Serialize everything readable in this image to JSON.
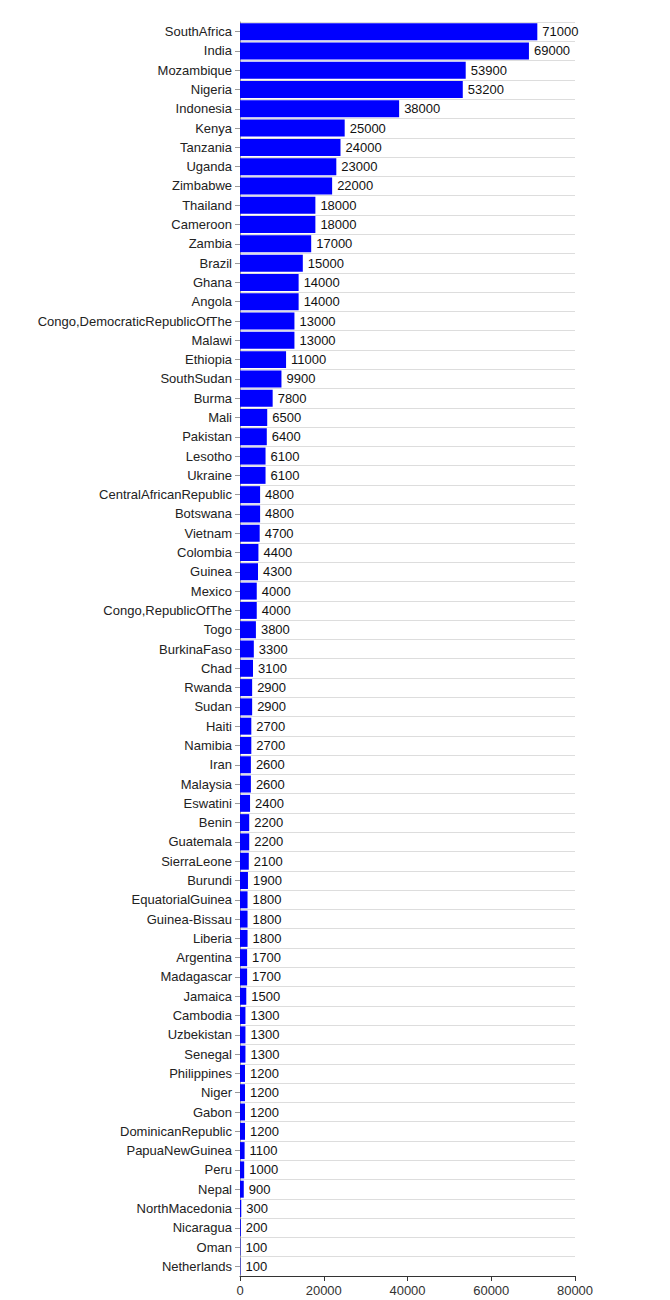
{
  "chart_data": {
    "type": "bar",
    "orientation": "horizontal",
    "categories": [
      "SouthAfrica",
      "India",
      "Mozambique",
      "Nigeria",
      "Indonesia",
      "Kenya",
      "Tanzania",
      "Uganda",
      "Zimbabwe",
      "Thailand",
      "Cameroon",
      "Zambia",
      "Brazil",
      "Ghana",
      "Angola",
      "Congo,DemocraticRepublicOfThe",
      "Malawi",
      "Ethiopia",
      "SouthSudan",
      "Burma",
      "Mali",
      "Pakistan",
      "Lesotho",
      "Ukraine",
      "CentralAfricanRepublic",
      "Botswana",
      "Vietnam",
      "Colombia",
      "Guinea",
      "Mexico",
      "Congo,RepublicOfThe",
      "Togo",
      "BurkinaFaso",
      "Chad",
      "Rwanda",
      "Sudan",
      "Haiti",
      "Namibia",
      "Iran",
      "Malaysia",
      "Eswatini",
      "Benin",
      "Guatemala",
      "SierraLeone",
      "Burundi",
      "EquatorialGuinea",
      "Guinea-Bissau",
      "Liberia",
      "Argentina",
      "Madagascar",
      "Jamaica",
      "Cambodia",
      "Uzbekistan",
      "Senegal",
      "Philippines",
      "Niger",
      "Gabon",
      "DominicanRepublic",
      "PapuaNewGuinea",
      "Peru",
      "Nepal",
      "NorthMacedonia",
      "Nicaragua",
      "Oman",
      "Netherlands"
    ],
    "values": [
      71000,
      69000,
      53900,
      53200,
      38000,
      25000,
      24000,
      23000,
      22000,
      18000,
      18000,
      17000,
      15000,
      14000,
      14000,
      13000,
      13000,
      11000,
      9900,
      7800,
      6500,
      6400,
      6100,
      6100,
      4800,
      4800,
      4700,
      4400,
      4300,
      4000,
      4000,
      3800,
      3300,
      3100,
      2900,
      2900,
      2700,
      2700,
      2600,
      2600,
      2400,
      2200,
      2200,
      2100,
      1900,
      1800,
      1800,
      1800,
      1700,
      1700,
      1500,
      1300,
      1300,
      1300,
      1200,
      1200,
      1200,
      1200,
      1100,
      1000,
      900,
      300,
      200,
      100,
      100
    ],
    "color": "#0000ff",
    "xlim": [
      0,
      80000
    ],
    "xticks": [
      0,
      20000,
      40000,
      60000,
      80000
    ],
    "grid": true,
    "data_labels": true
  }
}
